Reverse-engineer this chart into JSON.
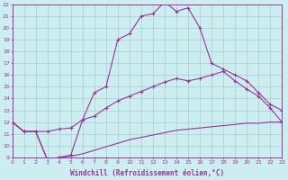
{
  "xlabel": "Windchill (Refroidissement éolien,°C)",
  "background_color": "#cceef0",
  "grid_color": "#aacccc",
  "line_color": "#993399",
  "xlim": [
    0,
    23
  ],
  "ylim": [
    9,
    22
  ],
  "xticks": [
    0,
    1,
    2,
    3,
    4,
    5,
    6,
    7,
    8,
    9,
    10,
    11,
    12,
    13,
    14,
    15,
    16,
    17,
    18,
    19,
    20,
    21,
    22,
    23
  ],
  "yticks": [
    9,
    10,
    11,
    12,
    13,
    14,
    15,
    16,
    17,
    18,
    19,
    20,
    21,
    22
  ],
  "curve1_x": [
    0,
    1,
    2,
    3,
    4,
    5,
    6,
    7,
    8,
    9,
    10,
    11,
    12,
    13,
    14,
    15,
    16,
    17,
    18,
    19,
    20,
    21,
    22,
    23
  ],
  "curve1_y": [
    12,
    11.2,
    11.2,
    8.8,
    9.0,
    9.2,
    12.2,
    14.5,
    15.0,
    19.0,
    19.5,
    21.0,
    21.2,
    22.2,
    21.4,
    21.7,
    20.0,
    17.0,
    16.5,
    16.0,
    15.5,
    14.5,
    13.5,
    13.0
  ],
  "curve2_x": [
    0,
    1,
    2,
    3,
    4,
    5,
    6,
    7,
    8,
    9,
    10,
    11,
    12,
    13,
    14,
    15,
    16,
    17,
    18,
    19,
    20,
    21,
    22,
    23
  ],
  "curve2_y": [
    12,
    11.2,
    11.2,
    11.2,
    11.4,
    11.5,
    12.2,
    12.5,
    13.2,
    13.8,
    14.2,
    14.6,
    15.0,
    15.4,
    15.7,
    15.5,
    15.7,
    16.0,
    16.3,
    15.5,
    14.8,
    14.2,
    13.2,
    12.0
  ],
  "curve3_x": [
    0,
    23
  ],
  "curve3_y": [
    12,
    12.0
  ],
  "curve4_x": [
    0,
    1,
    2,
    3,
    4,
    5,
    6,
    7,
    8,
    9,
    10,
    11,
    12,
    13,
    14,
    15,
    16,
    17,
    18,
    19,
    20,
    21,
    22,
    23
  ],
  "curve4_y": [
    12,
    11.2,
    11.2,
    8.8,
    9.0,
    9.1,
    9.3,
    9.6,
    9.9,
    10.2,
    10.5,
    10.7,
    10.9,
    11.1,
    11.3,
    11.4,
    11.5,
    11.6,
    11.7,
    11.8,
    11.9,
    11.9,
    12.0,
    12.0
  ]
}
